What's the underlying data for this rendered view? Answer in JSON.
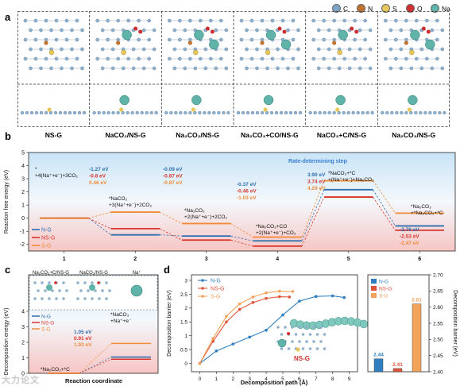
{
  "panels": {
    "a": "a",
    "b": "b",
    "c": "c",
    "d": "d"
  },
  "legend_atoms": [
    {
      "label": "C",
      "color": "#7fa3c4"
    },
    {
      "label": "N",
      "color": "#c0712f"
    },
    {
      "label": "S",
      "color": "#e7c65a"
    },
    {
      "label": "O",
      "color": "#d12f2f"
    },
    {
      "label": "Na",
      "color": "#5fb3a8"
    }
  ],
  "structures": [
    "NS-G",
    "NaCO₂/NS-G",
    "Na₂CO₂/NS-G",
    "Na₂CO₃+CO/NS-G",
    "NaCO₃+C/NS-G",
    "Na₂CO₃/NS-G"
  ],
  "panel_b": {
    "ylabel": "Reaction free energy (eV)",
    "xlabel": "Reaction coordinate",
    "rds_label": "Rate-determining step",
    "legend": [
      "N-G",
      "NS-G",
      "S-G"
    ],
    "step_labels": [
      "*\n+4(Na⁺+e⁻)+3CO₂",
      "*NaCO₂\n+3(Na⁺+e⁻)+2CO₂",
      "*Na₂CO₂\n+2(Na⁺+e⁻)+2CO₂",
      "*Na₂CO₃+CO\n+2(Na⁺+e⁻)+CO₂",
      "*NaCO₃+*C\n+(Na⁺+e⁻)+Na₂CO₃",
      "*Na₂CO₃\n+*Na₂CO₃+*C"
    ],
    "energy_labels": {
      "s2": [
        "-1.27 eV",
        "-0.8 eV",
        "0.46 eV"
      ],
      "s3": [
        "-0.09 eV",
        "-0.87 eV",
        "-0.87 eV"
      ],
      "s4": [
        "-0.37 eV",
        "-0.46 eV",
        "-1.03 eV"
      ],
      "s5": [
        "3.90 eV",
        "3.74 eV",
        "4.29 eV"
      ],
      "s6": [
        "-2.76 eV",
        "-2.53 eV",
        "-2.47 eV"
      ]
    }
  },
  "panel_c": {
    "ylabel": "Decomposition energy (eV)",
    "xlabel": "Reaction coordinate",
    "insets": [
      "Na₂CO₃+C/NS-G",
      "NaCO₃/NS-G",
      "Na⁺"
    ],
    "legend": [
      "N-G",
      "NS-G",
      "S-G"
    ],
    "energies": [
      "1.05 eV",
      "0.91 eV",
      "1.93 eV"
    ],
    "start_label": "*Na₂CO₃+*C",
    "end_label": "*NaCO₃\n+Na⁺+e⁻"
  },
  "chart_data": [
    {
      "type": "step",
      "title": "",
      "xlabel": "Reaction coordinate",
      "ylabel": "Reaction free energy (eV)",
      "categories": [
        "1",
        "2",
        "3",
        "4",
        "5",
        "6"
      ],
      "ylim": [
        -2.5,
        5
      ],
      "yticks": [
        5,
        4,
        3,
        2,
        1,
        0,
        -1,
        -2
      ],
      "series": [
        {
          "name": "N-G",
          "color": "#2f6fb0",
          "values": [
            0,
            -1.27,
            -1.36,
            -1.73,
            2.17,
            -0.59
          ]
        },
        {
          "name": "NS-G",
          "color": "#d8362d",
          "values": [
            0,
            -0.8,
            -1.67,
            -2.13,
            1.61,
            -0.92
          ]
        },
        {
          "name": "S-G",
          "color": "#f08c36",
          "values": [
            0,
            0.46,
            -0.41,
            -1.44,
            2.85,
            0.38
          ]
        }
      ]
    },
    {
      "type": "step",
      "title": "",
      "xlabel": "Reaction coordinate",
      "ylabel": "Decomposition energy (eV)",
      "categories": [
        "*Na₂CO₃+*C",
        "*NaCO₃+Na⁺+e⁻"
      ],
      "ylim": [
        0,
        4
      ],
      "yticks": [
        0,
        1,
        2,
        3,
        4
      ],
      "series": [
        {
          "name": "N-G",
          "color": "#2f6fb0",
          "values": [
            0,
            1.05
          ]
        },
        {
          "name": "NS-G",
          "color": "#d8362d",
          "values": [
            0,
            0.91
          ]
        },
        {
          "name": "S-G",
          "color": "#f08c36",
          "values": [
            0,
            1.93
          ]
        }
      ]
    },
    {
      "type": "line",
      "title": "",
      "xlabel": "Decomposition path (Å)",
      "ylabel": "Decomposition barrier (eV)",
      "xlim": [
        -0.5,
        9.5
      ],
      "ylim": [
        -0.3,
        3.2
      ],
      "xticks": [
        0,
        1,
        2,
        3,
        4,
        5,
        6,
        7,
        8,
        9
      ],
      "yticks": [
        0,
        0.5,
        1,
        1.5,
        2,
        2.5,
        3
      ],
      "series": [
        {
          "name": "N-G",
          "color": "#2f7fc0",
          "x": [
            0,
            1,
            2,
            3,
            4,
            5,
            6,
            7,
            8,
            8.7
          ],
          "y": [
            0,
            0.45,
            0.7,
            0.95,
            1.2,
            1.75,
            2.25,
            2.42,
            2.44,
            2.38
          ]
        },
        {
          "name": "NS-G",
          "color": "#e0533a",
          "x": [
            0,
            0.8,
            1.6,
            2.4,
            3.2,
            4.0,
            4.8,
            5.4
          ],
          "y": [
            0,
            0.8,
            1.5,
            1.95,
            2.2,
            2.35,
            2.41,
            2.4
          ]
        },
        {
          "name": "S-G",
          "color": "#f3a25a",
          "x": [
            0,
            0.8,
            1.6,
            2.4,
            3.2,
            4.0,
            4.8,
            5.6
          ],
          "y": [
            0,
            0.9,
            1.7,
            2.15,
            2.4,
            2.55,
            2.61,
            2.6
          ]
        }
      ]
    },
    {
      "type": "bar",
      "title": "",
      "ylabel": "Decomposition barrier (eV)",
      "categories": [
        "N-G",
        "NS-G",
        "S-G"
      ],
      "values": [
        2.44,
        2.41,
        2.61
      ],
      "ylim": [
        2.4,
        2.7
      ],
      "yticks": [
        2.4,
        2.45,
        2.5,
        2.55,
        2.6,
        2.65,
        2.7
      ],
      "colors": [
        "#2f7fc0",
        "#e0533a",
        "#f3a25a"
      ]
    }
  ],
  "panel_d_inset_label": "NS-G",
  "watermark": "大力论文"
}
